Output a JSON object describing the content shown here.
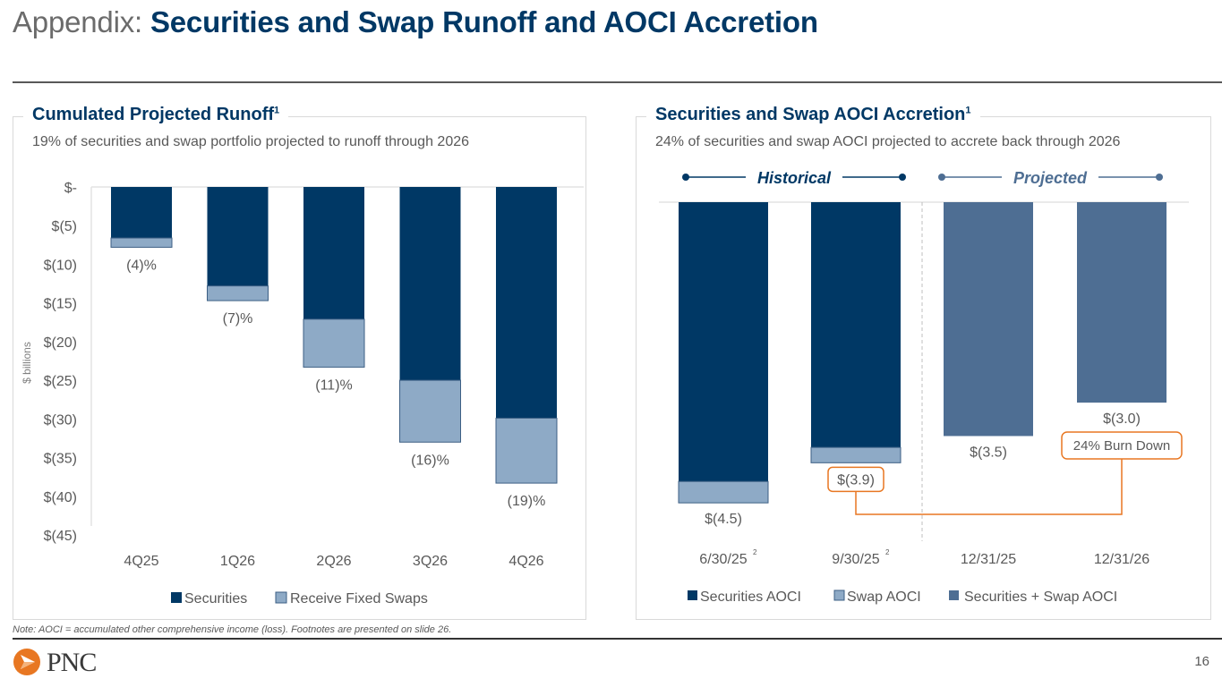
{
  "header": {
    "title_prefix": "Appendix: ",
    "title_main": "Securities and Swap Runoff and AOCI Accretion"
  },
  "colors": {
    "navy": "#003865",
    "light_blue": "#8eaac6",
    "mid_blue": "#4e6e93",
    "orange": "#e87722",
    "grid": "#d9d9d9"
  },
  "chart_data": [
    {
      "type": "bar",
      "stacked": true,
      "title": "Cumulated Projected Runoff",
      "title_footnote": "1",
      "subtitle": "19% of securities and swap portfolio projected to runoff through 2026",
      "ylabel": "$ billions",
      "xlabel": "",
      "ylim": [
        -45,
        0
      ],
      "yticks": [
        0,
        -5,
        -10,
        -15,
        -20,
        -25,
        -30,
        -35,
        -40,
        -45
      ],
      "ytick_labels": [
        "$-",
        "$(5)",
        "$(10)",
        "$(15)",
        "$(20)",
        "$(25)",
        "$(30)",
        "$(35)",
        "$(40)",
        "$(45)"
      ],
      "categories": [
        "4Q25",
        "1Q26",
        "2Q26",
        "3Q26",
        "4Q26"
      ],
      "series": [
        {
          "name": "Securities",
          "color": "#003865",
          "values": [
            -6.6,
            -12.8,
            -17.1,
            -25.0,
            -29.9
          ]
        },
        {
          "name": "Receive Fixed Swaps",
          "color": "#8eaac6",
          "values": [
            -1.2,
            -1.9,
            -6.2,
            -8.0,
            -8.4
          ]
        }
      ],
      "data_labels": [
        "(4)%",
        "(7)%",
        "(11)%",
        "(16)%",
        "(19)%"
      ],
      "legend": {
        "placement": "bottom",
        "entries": [
          "Securities",
          "Receive Fixed Swaps"
        ]
      },
      "grid": false
    },
    {
      "type": "bar",
      "stacked": true,
      "title": "Securities and Swap AOCI Accretion",
      "title_footnote": "1",
      "subtitle": "24% of securities and swap AOCI projected to accrete back through 2026",
      "ylabel": "",
      "xlabel": "",
      "ylim": [
        -5.0,
        0
      ],
      "categories": [
        "6/30/25",
        "9/30/25",
        "12/31/25",
        "12/31/26"
      ],
      "category_footnotes": [
        "2",
        "2",
        "",
        ""
      ],
      "series": [
        {
          "name": "Securities AOCI",
          "color": "#003865",
          "values": [
            -4.18,
            -3.67,
            null,
            null
          ]
        },
        {
          "name": "Swap AOCI",
          "color": "#8eaac6",
          "values": [
            -0.32,
            -0.23,
            null,
            null
          ]
        },
        {
          "name": "Securities + Swap AOCI",
          "color": "#4e6e93",
          "values": [
            null,
            null,
            -3.5,
            -3.0
          ]
        }
      ],
      "data_labels": [
        "$(4.5)",
        "$(3.9)",
        "$(3.5)",
        "$(3.0)"
      ],
      "period_labels": [
        {
          "label": "Historical",
          "range": [
            "6/30/25",
            "9/30/25"
          ]
        },
        {
          "label": "Projected",
          "range": [
            "12/31/25",
            "12/31/26"
          ]
        }
      ],
      "annotation": {
        "text": "24% Burn Down",
        "from": "9/30/25",
        "to": "12/31/26"
      },
      "legend": {
        "placement": "bottom",
        "entries": [
          "Securities AOCI",
          "Swap AOCI",
          "Securities + Swap AOCI"
        ]
      },
      "grid": false
    }
  ],
  "footer": {
    "note": "Note: AOCI = accumulated other comprehensive income (loss). Footnotes are presented on slide 26.",
    "logo_text": "PNC",
    "page_number": "16"
  }
}
